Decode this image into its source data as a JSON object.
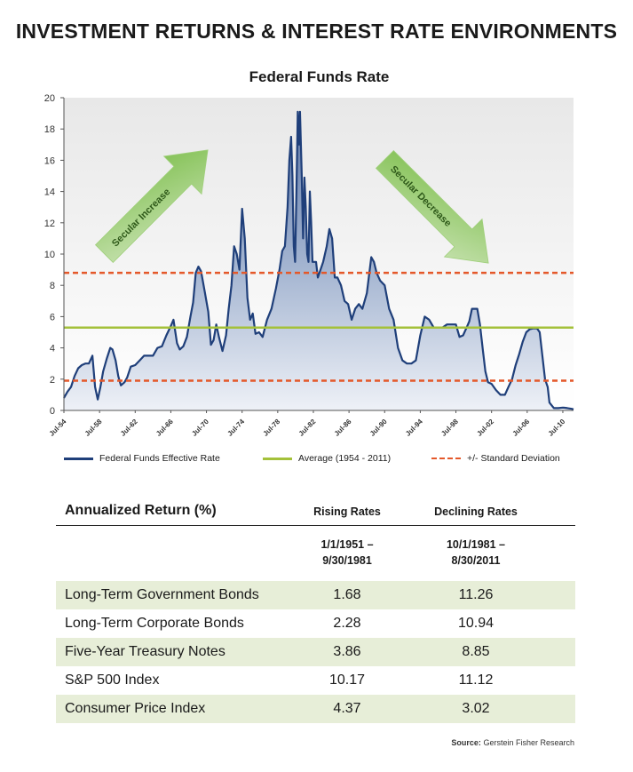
{
  "title": "INVESTMENT RETURNS & INTEREST RATE ENVIRONMENTS",
  "chart_data": {
    "type": "area",
    "title": "Federal Funds Rate",
    "ylim": [
      0,
      20
    ],
    "yticks": [
      0,
      2,
      4,
      6,
      8,
      10,
      12,
      14,
      16,
      18,
      20
    ],
    "xlim": [
      1954.5,
      2011.7
    ],
    "xtick_labels": [
      "Jul-54",
      "Jul-58",
      "Jul-62",
      "Jul-66",
      "Jul-70",
      "Jul-74",
      "Jul-78",
      "Jul-82",
      "Jul-86",
      "Jul-90",
      "Jul-94",
      "Jul-98",
      "Jul-02",
      "Jul-06",
      "Jul-10"
    ],
    "xtick_years": [
      1954.5,
      1958.5,
      1962.5,
      1966.5,
      1970.5,
      1974.5,
      1978.5,
      1982.5,
      1986.5,
      1990.5,
      1994.5,
      1998.5,
      2002.5,
      2006.5,
      2010.5
    ],
    "grid": false,
    "series": [
      {
        "name": "Federal Funds Effective Rate",
        "color": "#1f3f7a",
        "x": [
          1954.5,
          1954.9,
          1955.3,
          1955.7,
          1956.1,
          1956.5,
          1956.9,
          1957.3,
          1957.7,
          1958.0,
          1958.3,
          1958.6,
          1958.9,
          1959.3,
          1959.7,
          1959.95,
          1960.3,
          1960.6,
          1960.9,
          1961.3,
          1961.6,
          1962.0,
          1962.5,
          1963.0,
          1963.5,
          1964.0,
          1964.5,
          1965.0,
          1965.5,
          1966.0,
          1966.5,
          1966.8,
          1967.2,
          1967.5,
          1967.9,
          1968.3,
          1968.7,
          1969.0,
          1969.3,
          1969.6,
          1969.9,
          1970.3,
          1970.7,
          1971.0,
          1971.3,
          1971.6,
          1971.9,
          1972.3,
          1972.7,
          1973.0,
          1973.3,
          1973.6,
          1973.9,
          1974.2,
          1974.5,
          1974.8,
          1975.1,
          1975.4,
          1975.7,
          1976.0,
          1976.4,
          1976.8,
          1977.3,
          1977.8,
          1978.3,
          1978.7,
          1979.0,
          1979.3,
          1979.6,
          1979.8,
          1980.0,
          1980.15,
          1980.3,
          1980.45,
          1980.6,
          1980.75,
          1980.9,
          1981.0,
          1981.2,
          1981.35,
          1981.5,
          1981.65,
          1981.8,
          1981.95,
          1982.1,
          1982.25,
          1982.4,
          1982.6,
          1982.8,
          1983.0,
          1983.3,
          1983.6,
          1984.0,
          1984.3,
          1984.6,
          1984.9,
          1985.2,
          1985.6,
          1986.0,
          1986.4,
          1986.8,
          1987.2,
          1987.6,
          1988.0,
          1988.5,
          1989.0,
          1989.3,
          1989.6,
          1990.0,
          1990.5,
          1991.0,
          1991.5,
          1992.0,
          1992.5,
          1993.0,
          1993.5,
          1994.0,
          1994.5,
          1995.0,
          1995.5,
          1996.0,
          1996.5,
          1997.0,
          1997.5,
          1998.0,
          1998.5,
          1998.9,
          1999.3,
          1999.7,
          2000.0,
          2000.3,
          2000.6,
          2000.9,
          2001.2,
          2001.5,
          2001.8,
          2002.1,
          2002.5,
          2003.0,
          2003.5,
          2004.0,
          2004.4,
          2004.8,
          2005.2,
          2005.6,
          2006.0,
          2006.4,
          2006.8,
          2007.2,
          2007.6,
          2007.9,
          2008.2,
          2008.5,
          2008.8,
          2009.0,
          2009.5,
          2010.0,
          2010.5,
          2011.0,
          2011.5,
          2011.7
        ],
        "y": [
          0.8,
          1.2,
          1.5,
          2.2,
          2.7,
          2.9,
          3.0,
          3.0,
          3.5,
          1.5,
          0.7,
          1.5,
          2.5,
          3.3,
          4.0,
          3.9,
          3.2,
          2.2,
          1.6,
          1.8,
          2.1,
          2.8,
          2.9,
          3.2,
          3.5,
          3.5,
          3.5,
          4.0,
          4.1,
          4.8,
          5.4,
          5.8,
          4.3,
          3.9,
          4.1,
          4.7,
          6.0,
          6.9,
          8.8,
          9.2,
          8.9,
          7.6,
          6.3,
          4.2,
          4.5,
          5.5,
          4.7,
          3.8,
          4.8,
          6.5,
          8.0,
          10.5,
          10.0,
          9.0,
          12.9,
          11.0,
          7.2,
          5.8,
          6.2,
          4.9,
          5.0,
          4.7,
          5.8,
          6.5,
          7.8,
          9.0,
          10.2,
          10.5,
          13.0,
          16.0,
          17.5,
          15.0,
          10.5,
          9.5,
          14.0,
          19.1,
          17.0,
          19.1,
          15.0,
          11.0,
          14.9,
          13.0,
          10.0,
          9.5,
          14.0,
          12.0,
          9.5,
          9.5,
          9.5,
          8.5,
          9.0,
          9.5,
          10.5,
          11.6,
          11.0,
          8.5,
          8.5,
          8.0,
          7.0,
          6.8,
          5.8,
          6.5,
          6.8,
          6.5,
          7.5,
          9.8,
          9.5,
          8.8,
          8.3,
          8.0,
          6.5,
          5.8,
          4.0,
          3.2,
          3.0,
          3.0,
          3.2,
          4.8,
          6.0,
          5.8,
          5.3,
          5.3,
          5.3,
          5.5,
          5.5,
          5.5,
          4.7,
          4.8,
          5.3,
          5.7,
          6.5,
          6.5,
          6.5,
          5.5,
          4.0,
          2.5,
          1.8,
          1.7,
          1.3,
          1.0,
          1.0,
          1.5,
          2.0,
          2.9,
          3.6,
          4.4,
          5.0,
          5.2,
          5.25,
          5.25,
          5.0,
          3.5,
          2.0,
          1.5,
          0.5,
          0.15,
          0.15,
          0.18,
          0.15,
          0.1,
          0.07
        ]
      },
      {
        "name": "Average (1954 - 2011)",
        "color": "#a4c13a",
        "value": 5.3
      },
      {
        "name": "+/- Standard Deviation",
        "color": "#e4582a",
        "values": [
          1.9,
          8.8
        ]
      }
    ],
    "annotations": [
      {
        "text": "Secular Increase",
        "direction": "up",
        "color": "#8ec262"
      },
      {
        "text": "Secular Decrease",
        "direction": "down",
        "color": "#8ec262"
      }
    ]
  },
  "legend": {
    "effective": "Federal Funds Effective Rate",
    "average": "Average (1954 - 2011)",
    "stddev": "+/- Standard Deviation"
  },
  "table": {
    "header": "Annualized Return (%)",
    "col1": "Rising Rates",
    "col2": "Declining Rates",
    "col1_dates": [
      "1/1/1951 –",
      "9/30/1981"
    ],
    "col2_dates": [
      "10/1/1981 –",
      "8/30/2011"
    ],
    "rows": [
      {
        "label": "Long-Term Government Bonds",
        "rising": "1.68",
        "declining": "11.26"
      },
      {
        "label": "Long-Term Corporate Bonds",
        "rising": "2.28",
        "declining": "10.94"
      },
      {
        "label": "Five-Year Treasury Notes",
        "rising": "3.86",
        "declining": "8.85"
      },
      {
        "label": "S&P 500 Index",
        "rising": "10.17",
        "declining": "11.12"
      },
      {
        "label": "Consumer Price Index",
        "rising": "4.37",
        "declining": "3.02"
      }
    ]
  },
  "source": {
    "label": "Source:",
    "text": "Gerstein Fisher Research"
  }
}
